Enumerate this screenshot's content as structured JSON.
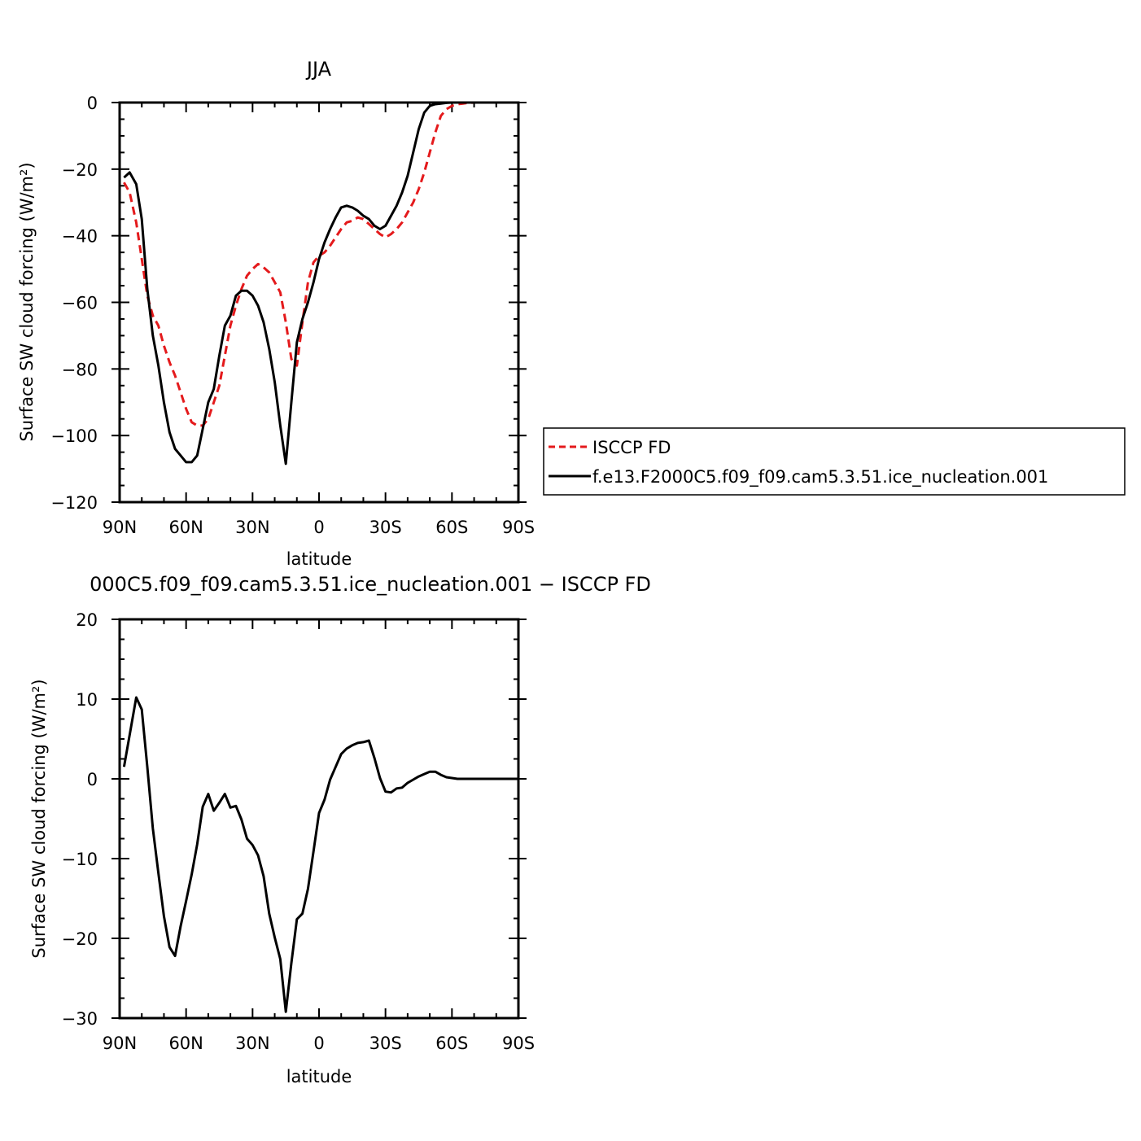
{
  "chart_data": [
    {
      "type": "line",
      "title": "JJA",
      "xlabel": "latitude",
      "ylabel": "Surface SW cloud forcing (W/m²)",
      "xlim": [
        90,
        -90
      ],
      "ylim": [
        -120,
        0
      ],
      "xticks": [
        {
          "value": 90,
          "label": "90N"
        },
        {
          "value": 60,
          "label": "60N"
        },
        {
          "value": 30,
          "label": "30N"
        },
        {
          "value": 0,
          "label": "0"
        },
        {
          "value": -30,
          "label": "30S"
        },
        {
          "value": -60,
          "label": "60S"
        },
        {
          "value": -90,
          "label": "90S"
        }
      ],
      "yticks": [
        {
          "value": 0,
          "label": "0"
        },
        {
          "value": -20,
          "label": "−20"
        },
        {
          "value": -40,
          "label": "−40"
        },
        {
          "value": -60,
          "label": "−60"
        },
        {
          "value": -80,
          "label": "−80"
        },
        {
          "value": -100,
          "label": "−100"
        },
        {
          "value": -120,
          "label": "−120"
        }
      ],
      "legend_position": "right",
      "series": [
        {
          "name": "ISCCP FD",
          "color": "#e41a1c",
          "dash": "dashed",
          "x": [
            88,
            85.5,
            82.5,
            80,
            77.5,
            75,
            72.5,
            70,
            67.5,
            65,
            62.5,
            60,
            57.5,
            55,
            52.5,
            50,
            47.5,
            45,
            42.5,
            40,
            37.5,
            35,
            32.5,
            30,
            27.5,
            25,
            22.5,
            20,
            17.5,
            15,
            12.5,
            10,
            7.5,
            5,
            2.5,
            0,
            -2.5,
            -5,
            -7.5,
            -10,
            -12.5,
            -15,
            -17.5,
            -20,
            -22.5,
            -25,
            -27.5,
            -30,
            -32.5,
            -35,
            -37.5,
            -40,
            -42.5,
            -45,
            -47.5,
            -50,
            -52.5,
            -55,
            -57.5,
            -60,
            -62.5,
            -65,
            -67.5,
            -70,
            -72.5,
            -75,
            -77.5,
            -80,
            -82.5,
            -85,
            -87.5,
            -90
          ],
          "y": [
            -24,
            -27,
            -36,
            -47,
            -58,
            -64,
            -67,
            -73,
            -78,
            -82,
            -87,
            -92,
            -96,
            -97,
            -97,
            -95,
            -90,
            -85,
            -76,
            -67,
            -61,
            -56,
            -52,
            -50,
            -48.5,
            -49.5,
            -51,
            -54,
            -57,
            -66,
            -77,
            -79,
            -66,
            -54,
            -48,
            -46,
            -45,
            -43,
            -40.5,
            -38,
            -36,
            -35.5,
            -34.5,
            -35,
            -36.5,
            -38,
            -39.5,
            -40.5,
            -39.5,
            -38,
            -36,
            -33,
            -30,
            -26,
            -21,
            -15,
            -9,
            -4,
            -2,
            -1,
            -0.5,
            -0.3,
            -0.1,
            0,
            0,
            0,
            0,
            0,
            0,
            0,
            0,
            0
          ]
        },
        {
          "name": "f.e13.F2000C5.f09_f09.cam5.3.51.ice_nucleation.001",
          "color": "#000000",
          "dash": "solid",
          "x": [
            88,
            85.5,
            82.5,
            80,
            77.5,
            75,
            72.5,
            70,
            67.5,
            65,
            62.5,
            60,
            57.5,
            55,
            52.5,
            50,
            47.5,
            45,
            42.5,
            40,
            37.5,
            35,
            32.5,
            30,
            27.5,
            25,
            22.5,
            20,
            17.5,
            15,
            12.5,
            10,
            7.5,
            5,
            2.5,
            0,
            -2.5,
            -5,
            -7.5,
            -10,
            -12.5,
            -15,
            -17.5,
            -20,
            -22.5,
            -25,
            -27.5,
            -30,
            -32.5,
            -35,
            -37.5,
            -40,
            -42.5,
            -45,
            -47.5,
            -50,
            -52.5,
            -55,
            -57.5,
            -60,
            -62.5,
            -65,
            -67.5,
            -70,
            -72.5,
            -75,
            -77.5,
            -80,
            -82.5,
            -85,
            -87.5,
            -90
          ],
          "y": [
            -22.5,
            -21,
            -24.5,
            -35,
            -56,
            -70,
            -79,
            -90,
            -99,
            -104,
            -106,
            -108,
            -108,
            -106,
            -98,
            -90,
            -86,
            -76,
            -67,
            -64,
            -58,
            -56.5,
            -56.5,
            -58,
            -61,
            -66,
            -74,
            -84,
            -97,
            -108.5,
            -90,
            -72,
            -65,
            -60,
            -54,
            -47,
            -42,
            -38,
            -34.5,
            -31.5,
            -31,
            -31.5,
            -32.5,
            -34,
            -35,
            -37,
            -38,
            -37,
            -34,
            -31,
            -27,
            -22,
            -15,
            -8,
            -3,
            -1,
            -0.5,
            -0.3,
            -0.1,
            0,
            0,
            0,
            0,
            0,
            0,
            0,
            0,
            0,
            0,
            0,
            0,
            0
          ]
        }
      ]
    },
    {
      "type": "line",
      "title": "000C5.f09_f09.cam5.3.51.ice_nucleation.001 − ISCCP FD",
      "xlabel": "latitude",
      "ylabel": "Surface SW cloud forcing (W/m²)",
      "xlim": [
        90,
        -90
      ],
      "ylim": [
        -30,
        20
      ],
      "xticks": [
        {
          "value": 90,
          "label": "90N"
        },
        {
          "value": 60,
          "label": "60N"
        },
        {
          "value": 30,
          "label": "30N"
        },
        {
          "value": 0,
          "label": "0"
        },
        {
          "value": -30,
          "label": "30S"
        },
        {
          "value": -60,
          "label": "60S"
        },
        {
          "value": -90,
          "label": "90S"
        }
      ],
      "yticks": [
        {
          "value": 20,
          "label": "20"
        },
        {
          "value": 10,
          "label": "10"
        },
        {
          "value": 0,
          "label": "0"
        },
        {
          "value": -10,
          "label": "−10"
        },
        {
          "value": -20,
          "label": "−20"
        },
        {
          "value": -30,
          "label": "−30"
        }
      ],
      "series": [
        {
          "color": "#000000",
          "dash": "solid",
          "x": [
            88,
            85.5,
            82.5,
            80,
            77.5,
            75,
            72.5,
            70,
            67.5,
            65,
            62.5,
            60,
            57.5,
            55,
            52.5,
            50,
            47.5,
            45,
            42.5,
            40,
            37.5,
            35,
            32.5,
            30,
            27.5,
            25,
            22.5,
            20,
            17.5,
            15,
            12.5,
            10,
            7.5,
            5,
            2.5,
            0,
            -2.5,
            -5,
            -7.5,
            -10,
            -12.5,
            -15,
            -17.5,
            -20,
            -22.5,
            -25,
            -27.5,
            -30,
            -32.5,
            -35,
            -37.5,
            -40,
            -42.5,
            -45,
            -47.5,
            -50,
            -52.5,
            -55,
            -57.5,
            -60,
            -62.5,
            -65,
            -67.5,
            -70,
            -72.5,
            -75,
            -77.5,
            -80,
            -82.5,
            -85,
            -87.5,
            -90
          ],
          "y": [
            1.5,
            5.5,
            10.2,
            8.7,
            1.5,
            -6.2,
            -11.8,
            -17.2,
            -21.1,
            -22.2,
            -18.5,
            -15.3,
            -12,
            -8.2,
            -3.5,
            -1.9,
            -4,
            -3,
            -1.9,
            -3.6,
            -3.4,
            -5.1,
            -7.5,
            -8.3,
            -9.6,
            -12.2,
            -16.9,
            -19.9,
            -22.6,
            -29.2,
            -23.1,
            -17.6,
            -16.9,
            -13.8,
            -9.1,
            -4.3,
            -2.6,
            -0.1,
            1.5,
            3.1,
            3.8,
            4.2,
            4.5,
            4.6,
            4.8,
            2.6,
            0.1,
            -1.6,
            -1.7,
            -1.2,
            -1.1,
            -0.5,
            -0.1,
            0.3,
            0.6,
            0.9,
            0.9,
            0.5,
            0.2,
            0.1,
            0,
            0,
            0,
            0,
            0,
            0,
            0,
            0,
            0,
            0,
            0,
            0
          ]
        }
      ]
    }
  ]
}
